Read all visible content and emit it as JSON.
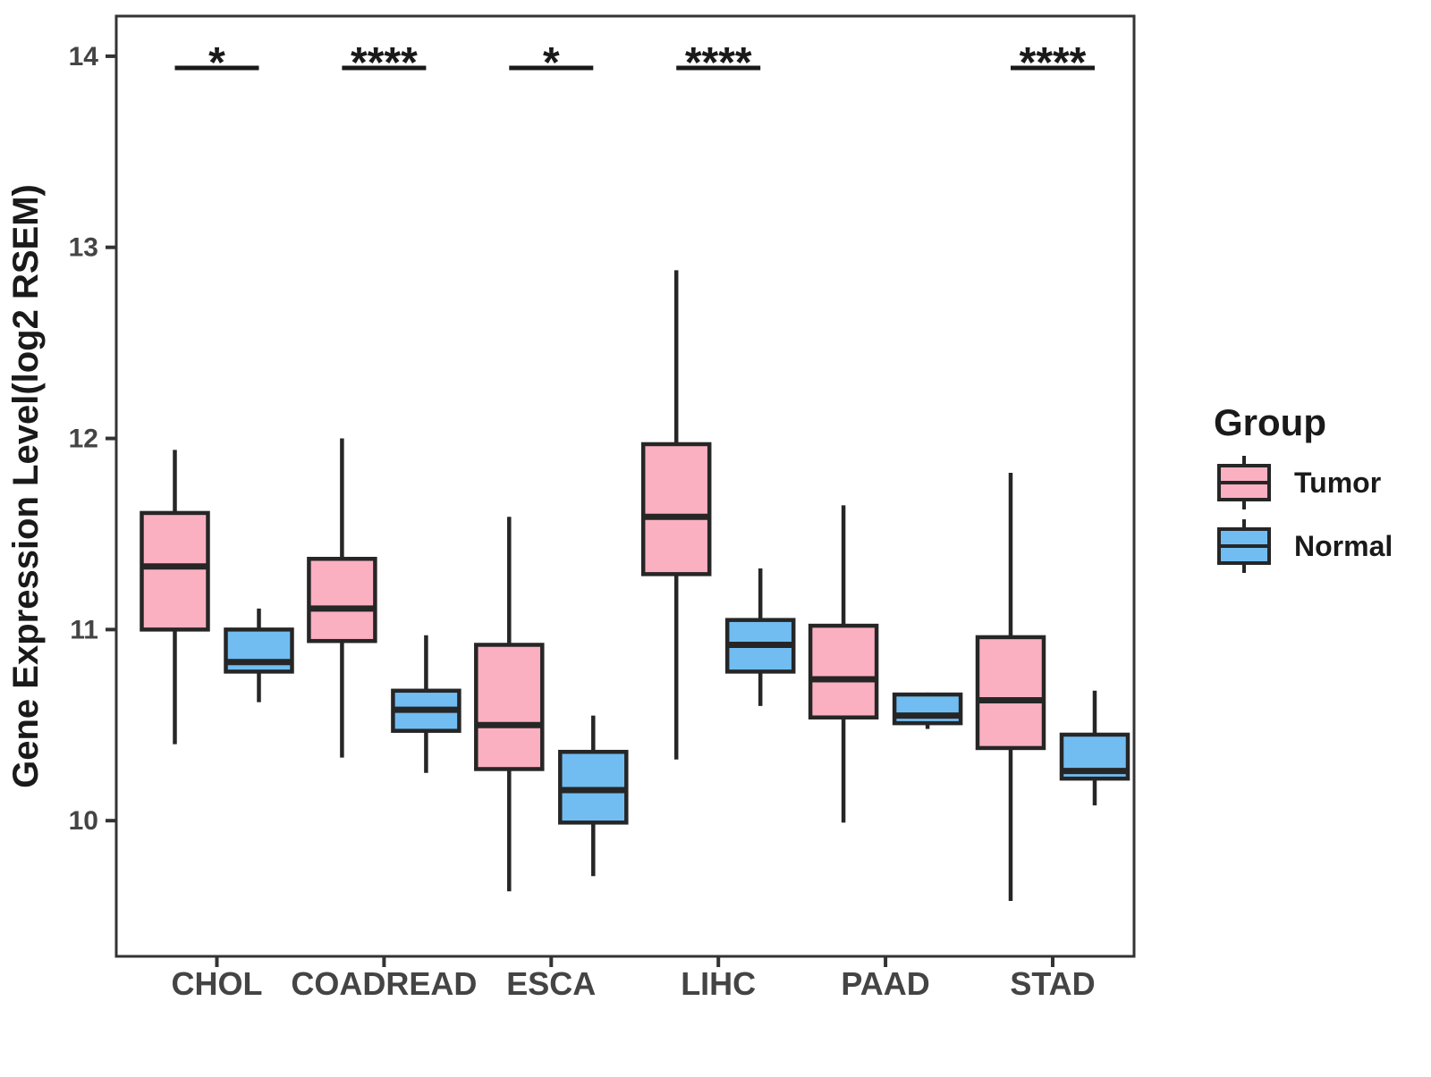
{
  "y_axis": {
    "label": "Gene Expression Level(log2 RSEM)",
    "ticks": [
      "10",
      "11",
      "12",
      "13",
      "14"
    ]
  },
  "x_axis": {
    "categories": [
      "CHOL",
      "COADREAD",
      "ESCA",
      "LIHC",
      "PAAD",
      "STAD"
    ]
  },
  "legend": {
    "title": "Group",
    "entries": [
      {
        "label": "Tumor",
        "color": "#FBB0C1"
      },
      {
        "label": "Normal",
        "color": "#71BDF2"
      }
    ]
  },
  "colors": {
    "tumor_fill": "#FBB0C1",
    "normal_fill": "#71BDF2",
    "box_border": "#262626",
    "axis_line": "#333333",
    "tick_label": "#444444",
    "text": "#1A1A1A"
  },
  "chart_data": {
    "type": "boxplot",
    "title": "",
    "xlabel": "",
    "ylabel": "Gene Expression Level(log2 RSEM)",
    "categories": [
      "CHOL",
      "COADREAD",
      "ESCA",
      "LIHC",
      "PAAD",
      "STAD"
    ],
    "ylim": [
      9.29,
      14.21
    ],
    "y_ticks": [
      10,
      11,
      12,
      13,
      14
    ],
    "grid": false,
    "legend_position": "right",
    "series": [
      {
        "name": "Tumor",
        "color": "#FBB0C1",
        "boxes": [
          {
            "category": "CHOL",
            "low": 10.4,
            "q1": 11.0,
            "median": 11.33,
            "q3": 11.61,
            "high": 11.94
          },
          {
            "category": "COADREAD",
            "low": 10.33,
            "q1": 10.94,
            "median": 11.11,
            "q3": 11.37,
            "high": 12.0
          },
          {
            "category": "ESCA",
            "low": 9.63,
            "q1": 10.27,
            "median": 10.5,
            "q3": 10.92,
            "high": 11.59
          },
          {
            "category": "LIHC",
            "low": 10.32,
            "q1": 11.29,
            "median": 11.59,
            "q3": 11.97,
            "high": 12.88
          },
          {
            "category": "PAAD",
            "low": 9.99,
            "q1": 10.54,
            "median": 10.74,
            "q3": 11.02,
            "high": 11.65
          },
          {
            "category": "STAD",
            "low": 9.58,
            "q1": 10.38,
            "median": 10.63,
            "q3": 10.96,
            "high": 11.82
          }
        ]
      },
      {
        "name": "Normal",
        "color": "#71BDF2",
        "boxes": [
          {
            "category": "CHOL",
            "low": 10.62,
            "q1": 10.78,
            "median": 10.83,
            "q3": 11.0,
            "high": 11.11
          },
          {
            "category": "COADREAD",
            "low": 10.25,
            "q1": 10.47,
            "median": 10.58,
            "q3": 10.68,
            "high": 10.97
          },
          {
            "category": "ESCA",
            "low": 9.71,
            "q1": 9.99,
            "median": 10.16,
            "q3": 10.36,
            "high": 10.55
          },
          {
            "category": "LIHC",
            "low": 10.6,
            "q1": 10.78,
            "median": 10.92,
            "q3": 11.05,
            "high": 11.32
          },
          {
            "category": "PAAD",
            "low": 10.48,
            "q1": 10.51,
            "median": 10.55,
            "q3": 10.66,
            "high": 10.67
          },
          {
            "category": "STAD",
            "low": 10.08,
            "q1": 10.22,
            "median": 10.26,
            "q3": 10.45,
            "high": 10.68
          }
        ]
      }
    ],
    "significance": [
      {
        "category": "CHOL",
        "label": "*"
      },
      {
        "category": "COADREAD",
        "label": "****"
      },
      {
        "category": "ESCA",
        "label": "*"
      },
      {
        "category": "LIHC",
        "label": "****"
      },
      {
        "category": "STAD",
        "label": "****"
      }
    ]
  }
}
